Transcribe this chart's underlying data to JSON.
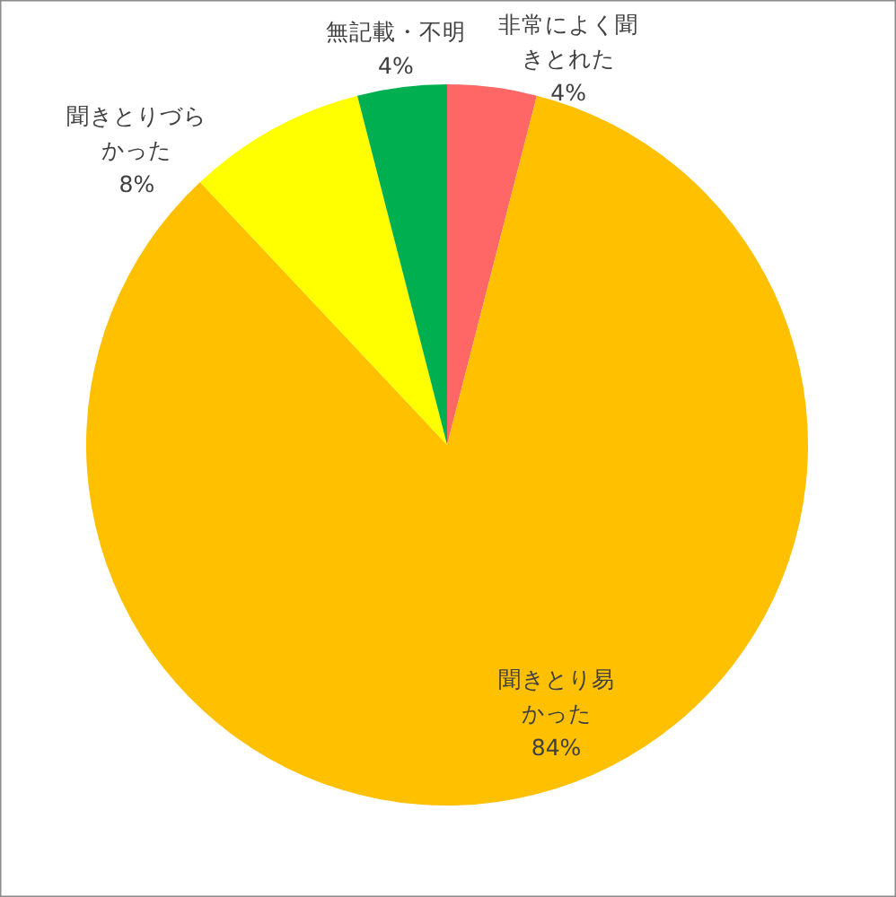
{
  "chart_data": {
    "type": "pie",
    "categories": [
      "非常によく聞きとれた",
      "聞きとり易かった",
      "聞きとりづらかった",
      "無記載・不明"
    ],
    "values": [
      4,
      84,
      8,
      4
    ],
    "colors": [
      "#ff6666",
      "#ffc000",
      "#ffff00",
      "#00b050"
    ],
    "value_labels": [
      "4%",
      "84%",
      "8%",
      "4%"
    ]
  }
}
